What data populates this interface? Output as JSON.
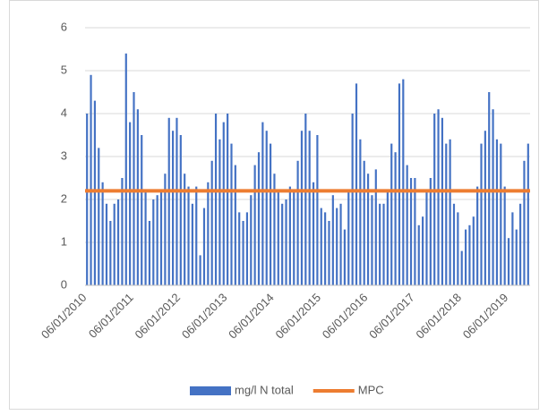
{
  "chart_data": {
    "type": "bar",
    "categories": [
      "06/01/2010",
      null,
      null,
      null,
      null,
      null,
      null,
      null,
      null,
      null,
      null,
      null,
      "06/01/2011",
      null,
      null,
      null,
      null,
      null,
      null,
      null,
      null,
      null,
      null,
      null,
      "06/01/2012",
      null,
      null,
      null,
      null,
      null,
      null,
      null,
      null,
      null,
      null,
      null,
      "06/01/2013",
      null,
      null,
      null,
      null,
      null,
      null,
      null,
      null,
      null,
      null,
      null,
      "06/01/2014",
      null,
      null,
      null,
      null,
      null,
      null,
      null,
      null,
      null,
      null,
      null,
      "06/01/2015",
      null,
      null,
      null,
      null,
      null,
      null,
      null,
      null,
      null,
      null,
      null,
      "06/01/2016",
      null,
      null,
      null,
      null,
      null,
      null,
      null,
      null,
      null,
      null,
      null,
      "06/01/2017",
      null,
      null,
      null,
      null,
      null,
      null,
      null,
      null,
      null,
      null,
      null,
      "06/01/2018",
      null,
      null,
      null,
      null,
      null,
      null,
      null,
      null,
      null,
      null,
      null,
      "06/01/2019",
      null,
      null,
      null,
      null,
      null
    ],
    "series": [
      {
        "name": "mg/l N total",
        "color": "#4472c4",
        "values": [
          4.0,
          4.9,
          4.3,
          3.2,
          2.4,
          1.9,
          1.5,
          1.9,
          2.0,
          2.5,
          5.4,
          3.8,
          4.5,
          4.1,
          3.5,
          2.2,
          1.5,
          2.0,
          2.1,
          2.2,
          2.6,
          3.9,
          3.6,
          3.9,
          3.5,
          2.6,
          2.3,
          1.9,
          2.3,
          0.7,
          1.8,
          2.4,
          2.9,
          4.0,
          3.4,
          3.8,
          4.0,
          3.3,
          2.8,
          1.7,
          1.5,
          1.7,
          2.1,
          2.8,
          3.1,
          3.8,
          3.6,
          3.3,
          2.6,
          2.2,
          1.9,
          2.0,
          2.3,
          2.2,
          2.9,
          3.6,
          4.0,
          3.6,
          2.4,
          3.5,
          1.8,
          1.7,
          1.5,
          2.1,
          1.8,
          1.9,
          1.3,
          2.2,
          4.0,
          4.7,
          3.4,
          2.9,
          2.6,
          2.1,
          2.7,
          1.9,
          1.9,
          2.2,
          3.3,
          3.1,
          4.7,
          4.8,
          2.8,
          2.5,
          2.5,
          1.4,
          1.6,
          2.2,
          2.5,
          4.0,
          4.1,
          3.9,
          3.3,
          3.4,
          1.9,
          1.7,
          0.8,
          1.3,
          1.4,
          1.6,
          2.3,
          3.3,
          3.6,
          4.5,
          4.1,
          3.4,
          3.3,
          2.3,
          1.1,
          1.7,
          1.3,
          1.9,
          2.9,
          3.3
        ]
      }
    ],
    "reference_lines": [
      {
        "name": "MPC",
        "color": "#ed7d31",
        "value": 2.2
      }
    ],
    "ylim": [
      0,
      6
    ],
    "yticks": [
      0,
      1,
      2,
      3,
      4,
      5,
      6
    ],
    "grid": true,
    "legend": "bottom"
  }
}
